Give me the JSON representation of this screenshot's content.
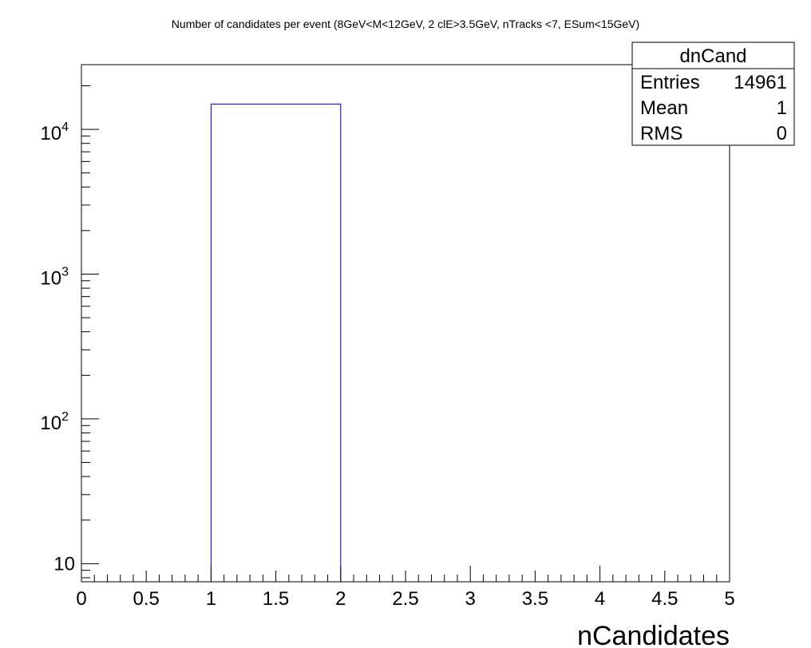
{
  "chart_data": {
    "type": "bar",
    "title": "Number of candidates per event (8GeV<M<12GeV, 2 clE>3.5GeV, nTracks <7, ESum<15GeV)",
    "xlabel": "nCandidates",
    "ylabel": "",
    "xlim": [
      0,
      5
    ],
    "ylim_log": [
      7.5,
      28000
    ],
    "yscale": "log",
    "bins": [
      {
        "x_low": 1,
        "x_high": 2,
        "value": 14961
      }
    ],
    "x_tick_labels": [
      "0",
      "0.5",
      "1",
      "1.5",
      "2",
      "2.5",
      "3",
      "3.5",
      "4",
      "4.5",
      "5"
    ],
    "y_tick_labels": [
      {
        "value": 10,
        "base": "10",
        "exp": ""
      },
      {
        "value": 100,
        "base": "10",
        "exp": "2"
      },
      {
        "value": 1000,
        "base": "10",
        "exp": "3"
      },
      {
        "value": 10000,
        "base": "10",
        "exp": "4"
      }
    ],
    "line_color": "#000080",
    "stats": {
      "name": "dnCand",
      "rows": [
        {
          "label": "Entries",
          "value": "14961"
        },
        {
          "label": "Mean",
          "value": "1"
        },
        {
          "label": "RMS",
          "value": "0"
        }
      ]
    }
  }
}
